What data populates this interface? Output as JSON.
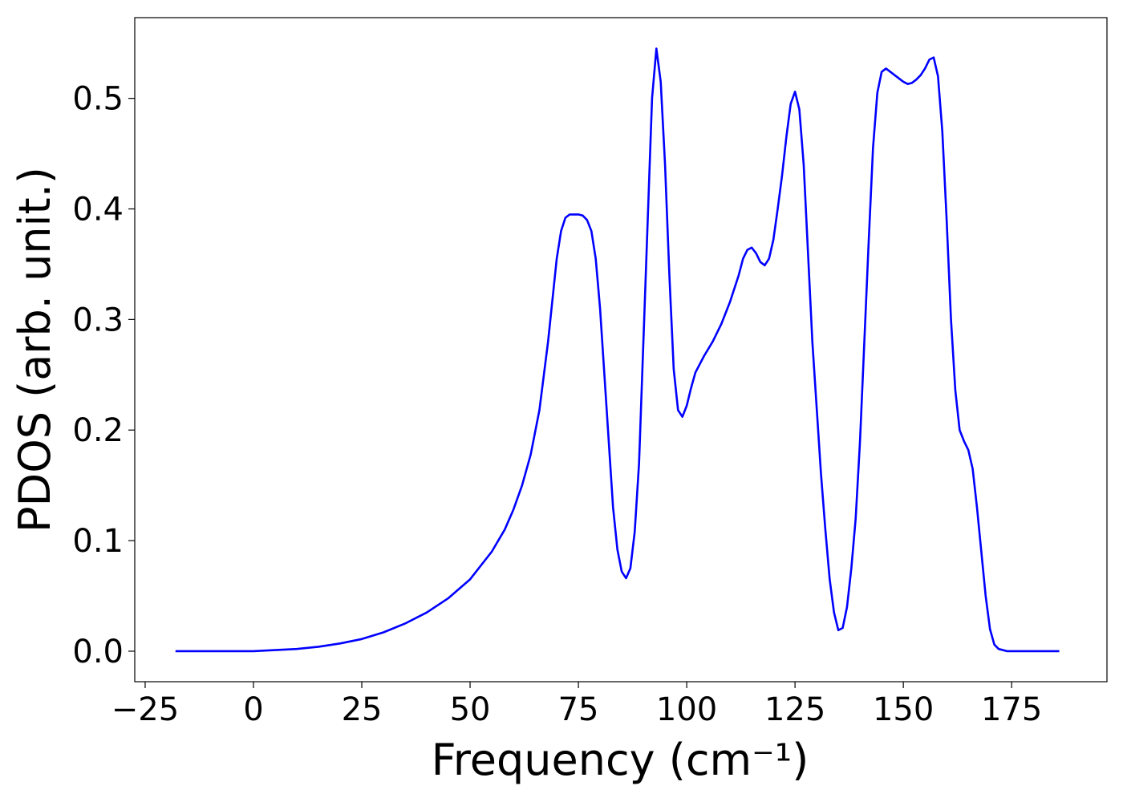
{
  "chart_data": {
    "type": "line",
    "xlabel": "Frequency (cm⁻¹)",
    "ylabel": "PDOS (arb. unit.)",
    "color": "#0000ff",
    "x": [
      -18,
      0,
      5,
      10,
      15,
      20,
      25,
      30,
      35,
      40,
      45,
      50,
      55,
      58,
      60,
      62,
      64,
      66,
      68,
      70,
      71,
      72,
      73,
      75,
      76,
      77,
      78,
      79,
      80,
      81,
      82,
      83,
      84,
      85,
      86,
      87,
      88,
      89,
      90,
      91,
      92,
      93,
      94,
      95,
      96,
      97,
      98,
      99,
      100,
      101,
      102,
      104,
      106,
      108,
      110,
      112,
      113,
      114,
      115,
      116,
      117,
      118,
      119,
      120,
      121,
      122,
      123,
      124,
      125,
      126,
      127,
      128,
      129,
      130,
      131,
      132,
      133,
      134,
      135,
      136,
      137,
      138,
      139,
      140,
      141,
      142,
      143,
      144,
      145,
      146,
      148,
      150,
      151,
      152,
      153,
      154,
      155,
      156,
      157,
      158,
      159,
      160,
      161,
      162,
      163,
      164,
      165,
      166,
      167,
      168,
      169,
      170,
      171,
      172,
      174,
      186
    ],
    "values": [
      0,
      0,
      0.001,
      0.002,
      0.004,
      0.007,
      0.011,
      0.017,
      0.025,
      0.035,
      0.048,
      0.065,
      0.09,
      0.11,
      0.128,
      0.15,
      0.178,
      0.218,
      0.28,
      0.355,
      0.38,
      0.392,
      0.395,
      0.395,
      0.394,
      0.39,
      0.38,
      0.355,
      0.31,
      0.25,
      0.19,
      0.13,
      0.092,
      0.072,
      0.066,
      0.075,
      0.108,
      0.17,
      0.28,
      0.39,
      0.5,
      0.545,
      0.515,
      0.44,
      0.34,
      0.255,
      0.218,
      0.212,
      0.222,
      0.238,
      0.252,
      0.267,
      0.28,
      0.296,
      0.316,
      0.34,
      0.355,
      0.363,
      0.365,
      0.36,
      0.352,
      0.349,
      0.355,
      0.372,
      0.4,
      0.43,
      0.465,
      0.495,
      0.506,
      0.49,
      0.44,
      0.36,
      0.28,
      0.22,
      0.16,
      0.11,
      0.065,
      0.035,
      0.019,
      0.021,
      0.04,
      0.075,
      0.12,
      0.19,
      0.28,
      0.37,
      0.455,
      0.505,
      0.524,
      0.527,
      0.521,
      0.515,
      0.513,
      0.514,
      0.517,
      0.521,
      0.527,
      0.535,
      0.537,
      0.52,
      0.47,
      0.39,
      0.3,
      0.236,
      0.2,
      0.19,
      0.182,
      0.165,
      0.13,
      0.09,
      0.05,
      0.02,
      0.006,
      0.002,
      0,
      0
    ],
    "xlim": [
      -27.4,
      197.0
    ],
    "ylim": [
      -0.0276,
      0.573
    ],
    "xticks": [
      {
        "value": -25,
        "label": "−25"
      },
      0,
      25,
      50,
      75,
      100,
      125,
      150,
      175
    ],
    "yticks": [
      {
        "value": 0,
        "label": "0.0"
      },
      0.1,
      0.2,
      0.3,
      0.4,
      0.5
    ]
  }
}
